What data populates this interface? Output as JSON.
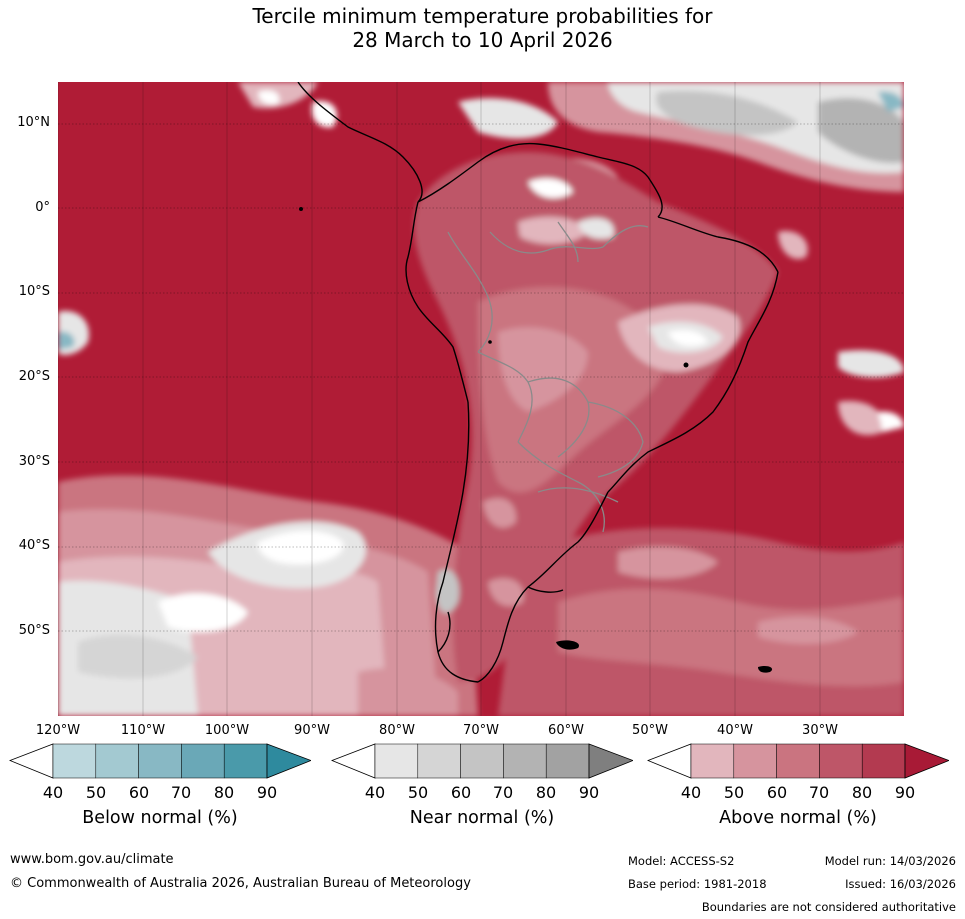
{
  "title": {
    "line1": "Tercile minimum temperature probabilities for",
    "line2": "28 March to 10 April 2026"
  },
  "map": {
    "lat_labels": [
      "10°N",
      "0°",
      "10°S",
      "20°S",
      "30°S",
      "40°S",
      "50°S"
    ],
    "lon_labels": [
      "120°W",
      "110°W",
      "100°W",
      "90°W",
      "80°W",
      "70°W",
      "60°W",
      "50°W",
      "40°W",
      "30°W"
    ],
    "gridlines": true,
    "colors": {
      "land_outline": "#000000",
      "borders": "#8a8a8a",
      "ocean_dominant": "#b01c36"
    }
  },
  "legends": [
    {
      "title": "Below normal (%)",
      "ticks": [
        "40",
        "50",
        "60",
        "70",
        "80",
        "90"
      ],
      "colors": [
        "#ffffff",
        "#bdd8de",
        "#a3c9d1",
        "#88b8c4",
        "#6aa8b7",
        "#4a9aaa",
        "#2e8a9e"
      ]
    },
    {
      "title": "Near normal (%)",
      "ticks": [
        "40",
        "50",
        "60",
        "70",
        "80",
        "90"
      ],
      "colors": [
        "#ffffff",
        "#e6e6e6",
        "#d5d5d5",
        "#c4c4c4",
        "#b3b3b3",
        "#a2a2a2",
        "#7f7f7f"
      ]
    },
    {
      "title": "Above normal (%)",
      "ticks": [
        "40",
        "50",
        "60",
        "70",
        "80",
        "90"
      ],
      "colors": [
        "#ffffff",
        "#e2b6bd",
        "#d6949e",
        "#ca7480",
        "#be5668",
        "#b33a50",
        "#a81a36"
      ]
    }
  ],
  "footer": {
    "website": "www.bom.gov.au/climate",
    "copyright": "© Commonwealth of Australia 2026, Australian Bureau of Meteorology",
    "model": "Model: ACCESS-S2",
    "base_period": "Base period: 1981-2018",
    "model_run": "Model run: 14/03/2026",
    "issued": "Issued: 16/03/2026",
    "disclaimer": "Boundaries are not considered authoritative"
  }
}
